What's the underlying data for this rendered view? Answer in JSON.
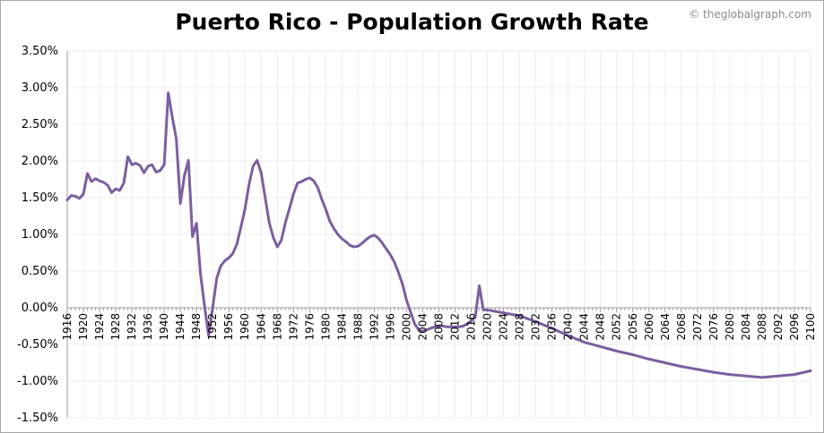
{
  "watermark": "© theglobalgraph.com",
  "colors": {
    "line": "#7b5fa0",
    "grid": "#ececec",
    "axis": "#9e9e9e"
  },
  "chart_data": {
    "type": "line",
    "title": "Puerto Rico - Population Growth Rate",
    "xlabel": "",
    "ylabel": "",
    "ylim": [
      -1.5,
      3.5
    ],
    "yticks": [
      "-1.50%",
      "-1.00%",
      "-0.50%",
      "0.00%",
      "0.50%",
      "1.00%",
      "1.50%",
      "2.00%",
      "2.50%",
      "3.00%",
      "3.50%"
    ],
    "xlim": [
      1916,
      2100
    ],
    "xticks": [
      1916,
      1920,
      1924,
      1928,
      1932,
      1936,
      1940,
      1944,
      1948,
      1952,
      1956,
      1960,
      1964,
      1968,
      1972,
      1976,
      1980,
      1984,
      1988,
      1992,
      1996,
      2000,
      2004,
      2008,
      2012,
      2016,
      2020,
      2024,
      2028,
      2032,
      2036,
      2040,
      2044,
      2048,
      2052,
      2056,
      2060,
      2064,
      2068,
      2072,
      2076,
      2080,
      2084,
      2088,
      2092,
      2096,
      2100
    ],
    "grid": true,
    "series": [
      {
        "name": "Population Growth Rate (%)",
        "points": [
          [
            1916,
            1.47
          ],
          [
            1917,
            1.53
          ],
          [
            1918,
            1.52
          ],
          [
            1919,
            1.49
          ],
          [
            1920,
            1.55
          ],
          [
            1921,
            1.83
          ],
          [
            1922,
            1.72
          ],
          [
            1923,
            1.76
          ],
          [
            1924,
            1.73
          ],
          [
            1925,
            1.71
          ],
          [
            1926,
            1.67
          ],
          [
            1927,
            1.57
          ],
          [
            1928,
            1.62
          ],
          [
            1929,
            1.6
          ],
          [
            1930,
            1.7
          ],
          [
            1931,
            2.06
          ],
          [
            1932,
            1.95
          ],
          [
            1933,
            1.97
          ],
          [
            1934,
            1.94
          ],
          [
            1935,
            1.84
          ],
          [
            1936,
            1.93
          ],
          [
            1937,
            1.95
          ],
          [
            1938,
            1.85
          ],
          [
            1939,
            1.87
          ],
          [
            1940,
            1.95
          ],
          [
            1941,
            2.93
          ],
          [
            1942,
            2.6
          ],
          [
            1943,
            2.3
          ],
          [
            1944,
            1.42
          ],
          [
            1945,
            1.8
          ],
          [
            1946,
            2.01
          ],
          [
            1947,
            0.97
          ],
          [
            1948,
            1.15
          ],
          [
            1949,
            0.45
          ],
          [
            1950,
            0.02
          ],
          [
            1951,
            -0.38
          ],
          [
            1952,
            0.0
          ],
          [
            1953,
            0.4
          ],
          [
            1954,
            0.57
          ],
          [
            1955,
            0.64
          ],
          [
            1956,
            0.68
          ],
          [
            1957,
            0.74
          ],
          [
            1958,
            0.87
          ],
          [
            1959,
            1.1
          ],
          [
            1960,
            1.35
          ],
          [
            1961,
            1.68
          ],
          [
            1962,
            1.93
          ],
          [
            1963,
            2.01
          ],
          [
            1964,
            1.84
          ],
          [
            1965,
            1.5
          ],
          [
            1966,
            1.16
          ],
          [
            1967,
            0.96
          ],
          [
            1968,
            0.83
          ],
          [
            1969,
            0.92
          ],
          [
            1970,
            1.16
          ],
          [
            1971,
            1.35
          ],
          [
            1972,
            1.55
          ],
          [
            1973,
            1.7
          ],
          [
            1974,
            1.72
          ],
          [
            1975,
            1.75
          ],
          [
            1976,
            1.77
          ],
          [
            1977,
            1.73
          ],
          [
            1978,
            1.64
          ],
          [
            1979,
            1.48
          ],
          [
            1980,
            1.34
          ],
          [
            1981,
            1.18
          ],
          [
            1982,
            1.08
          ],
          [
            1983,
            1.0
          ],
          [
            1984,
            0.94
          ],
          [
            1985,
            0.9
          ],
          [
            1986,
            0.85
          ],
          [
            1987,
            0.83
          ],
          [
            1988,
            0.84
          ],
          [
            1989,
            0.88
          ],
          [
            1990,
            0.93
          ],
          [
            1991,
            0.97
          ],
          [
            1992,
            0.99
          ],
          [
            1993,
            0.95
          ],
          [
            1994,
            0.88
          ],
          [
            1995,
            0.8
          ],
          [
            1996,
            0.72
          ],
          [
            1997,
            0.62
          ],
          [
            1998,
            0.48
          ],
          [
            1999,
            0.32
          ],
          [
            2000,
            0.1
          ],
          [
            2001,
            -0.06
          ],
          [
            2002,
            -0.22
          ],
          [
            2003,
            -0.3
          ],
          [
            2004,
            -0.32
          ],
          [
            2005,
            -0.3
          ],
          [
            2006,
            -0.28
          ],
          [
            2007,
            -0.26
          ],
          [
            2008,
            -0.25
          ],
          [
            2009,
            -0.25
          ],
          [
            2010,
            -0.26
          ],
          [
            2011,
            -0.26
          ],
          [
            2012,
            -0.26
          ],
          [
            2013,
            -0.26
          ],
          [
            2014,
            -0.25
          ],
          [
            2015,
            -0.22
          ],
          [
            2016,
            -0.18
          ],
          [
            2017,
            -0.13
          ],
          [
            2018,
            0.3
          ],
          [
            2019,
            -0.03
          ],
          [
            2020,
            -0.03
          ],
          [
            2024,
            -0.07
          ],
          [
            2028,
            -0.11
          ],
          [
            2032,
            -0.19
          ],
          [
            2036,
            -0.28
          ],
          [
            2040,
            -0.38
          ],
          [
            2044,
            -0.47
          ],
          [
            2048,
            -0.53
          ],
          [
            2052,
            -0.59
          ],
          [
            2056,
            -0.64
          ],
          [
            2060,
            -0.7
          ],
          [
            2064,
            -0.75
          ],
          [
            2068,
            -0.8
          ],
          [
            2072,
            -0.84
          ],
          [
            2076,
            -0.88
          ],
          [
            2080,
            -0.91
          ],
          [
            2084,
            -0.93
          ],
          [
            2088,
            -0.95
          ],
          [
            2092,
            -0.93
          ],
          [
            2096,
            -0.91
          ],
          [
            2100,
            -0.86
          ]
        ]
      }
    ]
  }
}
